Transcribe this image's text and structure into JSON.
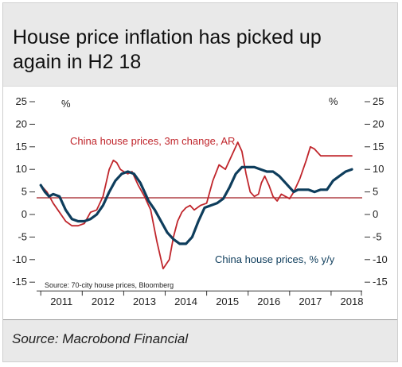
{
  "title_line1": "House price inflation has picked up",
  "title_line2": "again in H2 18",
  "source": "Source: Macrobond Financial",
  "chart_data": {
    "type": "line",
    "title": "House price inflation has picked up again in H2 18",
    "left_unit": "%",
    "right_unit": "%",
    "ylim": [
      -15,
      25
    ],
    "y_ticks": [
      -15,
      -10,
      -5,
      0,
      5,
      10,
      15,
      20,
      25
    ],
    "y_tick_labels": [
      "-15",
      "-10",
      "-5",
      "0",
      "5",
      "10",
      "15",
      "20",
      "25"
    ],
    "x_ticks": [
      "2011",
      "2012",
      "2013",
      "2014",
      "2015",
      "2016",
      "2017",
      "2018"
    ],
    "xlim": [
      2010.9,
      2018.75
    ],
    "reference_line": 3.7,
    "note": "Source: 70-city house prices, Bloomberg",
    "series": [
      {
        "name": "China house prices, 3m change, AR",
        "color": "#c0262c",
        "x": [
          2011.0,
          2011.15,
          2011.3,
          2011.45,
          2011.6,
          2011.75,
          2011.9,
          2012.05,
          2012.2,
          2012.35,
          2012.5,
          2012.65,
          2012.75,
          2012.83,
          2012.92,
          2013.0,
          2013.1,
          2013.2,
          2013.35,
          2013.5,
          2013.65,
          2013.8,
          2013.95,
          2014.1,
          2014.2,
          2014.3,
          2014.4,
          2014.5,
          2014.6,
          2014.7,
          2014.85,
          2015.0,
          2015.15,
          2015.3,
          2015.45,
          2015.6,
          2015.75,
          2015.85,
          2015.95,
          2016.05,
          2016.15,
          2016.25,
          2016.32,
          2016.4,
          2016.5,
          2016.6,
          2016.7,
          2016.8,
          2016.9,
          2017.0,
          2017.1,
          2017.25,
          2017.4,
          2017.5,
          2017.6,
          2017.75,
          2017.9,
          2018.0,
          2018.1,
          2018.2,
          2018.3,
          2018.4,
          2018.5
        ],
        "values": [
          6.5,
          5.0,
          2.5,
          0.5,
          -1.5,
          -2.5,
          -2.5,
          -2.0,
          0.5,
          1.0,
          4.0,
          10.0,
          12.0,
          11.5,
          10.0,
          9.5,
          9.0,
          9.5,
          6.5,
          4.0,
          1.0,
          -6.0,
          -12.0,
          -10.0,
          -5.0,
          -1.5,
          0.5,
          1.5,
          2.0,
          1.0,
          2.0,
          2.5,
          7.5,
          11.0,
          10.0,
          13.0,
          16.0,
          14.0,
          9.0,
          5.0,
          4.0,
          4.5,
          7.0,
          8.5,
          6.5,
          4.0,
          3.0,
          4.5,
          4.0,
          3.5,
          5.0,
          8.0,
          12.0,
          15.0,
          14.5,
          13.0,
          13.0,
          13.0,
          13.0,
          13.0,
          13.0,
          13.0,
          13.0
        ]
      },
      {
        "name": "China house prices, % y/y",
        "color": "#0e3d5c",
        "x": [
          2011.0,
          2011.1,
          2011.2,
          2011.3,
          2011.45,
          2011.6,
          2011.75,
          2011.9,
          2012.05,
          2012.2,
          2012.35,
          2012.5,
          2012.65,
          2012.8,
          2012.95,
          2013.1,
          2013.25,
          2013.4,
          2013.5,
          2013.6,
          2013.75,
          2013.9,
          2014.05,
          2014.2,
          2014.35,
          2014.5,
          2014.65,
          2014.8,
          2014.95,
          2015.1,
          2015.25,
          2015.4,
          2015.55,
          2015.7,
          2015.85,
          2016.0,
          2016.15,
          2016.3,
          2016.45,
          2016.6,
          2016.75,
          2016.9,
          2017.0,
          2017.1,
          2017.2,
          2017.3,
          2017.45,
          2017.6,
          2017.75,
          2017.9,
          2018.05,
          2018.2,
          2018.35,
          2018.5
        ],
        "values": [
          6.5,
          5.0,
          4.0,
          4.5,
          4.0,
          1.0,
          -1.0,
          -1.5,
          -1.5,
          -1.0,
          0.0,
          2.0,
          5.0,
          7.5,
          9.0,
          9.5,
          9.0,
          7.0,
          5.0,
          3.0,
          1.0,
          -1.5,
          -4.0,
          -5.5,
          -6.5,
          -6.5,
          -5.0,
          -1.5,
          1.5,
          2.0,
          2.5,
          3.5,
          6.0,
          9.0,
          10.5,
          10.5,
          10.5,
          10.0,
          9.5,
          9.5,
          8.5,
          7.0,
          6.0,
          5.0,
          5.5,
          5.5,
          5.5,
          5.0,
          5.5,
          5.5,
          7.5,
          8.5,
          9.5,
          10.0
        ]
      }
    ]
  }
}
